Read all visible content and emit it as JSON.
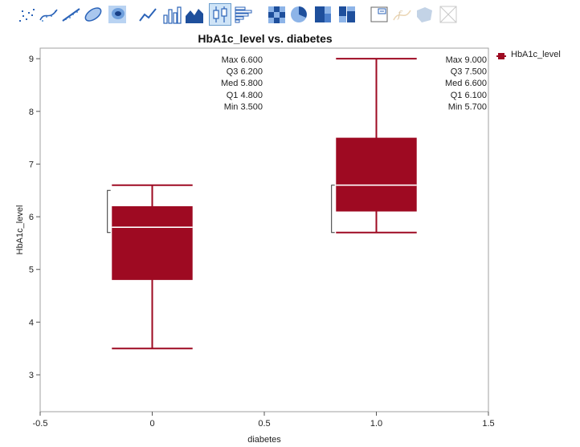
{
  "toolbar": {
    "buttons": [
      {
        "icon": "points-icon",
        "active": false,
        "disabled": false
      },
      {
        "icon": "smoother-icon",
        "active": false,
        "disabled": false
      },
      {
        "icon": "line-of-fit-icon",
        "active": false,
        "disabled": false
      },
      {
        "icon": "ellipse-icon",
        "active": false,
        "disabled": false
      },
      {
        "icon": "contour-icon",
        "active": false,
        "disabled": false
      },
      {
        "icon": "line-icon",
        "active": false,
        "disabled": false
      },
      {
        "icon": "bar-icon",
        "active": false,
        "disabled": false
      },
      {
        "icon": "area-icon",
        "active": false,
        "disabled": false
      },
      {
        "icon": "box-plot-icon",
        "active": true,
        "disabled": false
      },
      {
        "icon": "histogram-icon",
        "active": false,
        "disabled": false
      },
      {
        "icon": "heatmap-icon",
        "active": false,
        "disabled": false
      },
      {
        "icon": "pie-icon",
        "active": false,
        "disabled": false
      },
      {
        "icon": "treemap-icon",
        "active": false,
        "disabled": false
      },
      {
        "icon": "mosaic-icon",
        "active": false,
        "disabled": false
      },
      {
        "icon": "caption-box-icon",
        "active": false,
        "disabled": false
      },
      {
        "icon": "formula-icon",
        "active": false,
        "disabled": true
      },
      {
        "icon": "map-shape-icon",
        "active": false,
        "disabled": true
      },
      {
        "icon": "parallel-icon",
        "active": false,
        "disabled": true
      }
    ]
  },
  "colors": {
    "box": "#9e0a22",
    "median": "#ffffff",
    "frame": "#a0a0a0"
  },
  "chart_data": {
    "type": "box",
    "title": "HbA1c_level vs. diabetes",
    "xlabel": "diabetes",
    "ylabel": "HbA1c_level",
    "xlim": [
      -0.5,
      1.5
    ],
    "ylim": [
      2.3,
      9.2
    ],
    "xticks": [
      -0.5,
      0,
      0.5,
      1.0,
      1.5
    ],
    "xtick_labels": [
      "-0.5",
      "0",
      "0.5",
      "1.0",
      "1.5"
    ],
    "yticks": [
      3,
      4,
      5,
      6,
      7,
      8,
      9
    ],
    "ytick_labels": [
      "3",
      "4",
      "5",
      "6",
      "7",
      "8",
      "9"
    ],
    "grid": false,
    "legend": {
      "position": "right",
      "entries": [
        "HbA1c_level"
      ]
    },
    "boxes": [
      {
        "x": 0,
        "min": 3.5,
        "q1": 4.8,
        "median": 5.8,
        "q3": 6.2,
        "max": 6.6,
        "shortest_half": [
          5.7,
          6.5
        ],
        "labels": [
          {
            "name": "Max",
            "value": "6.600"
          },
          {
            "name": "Q3",
            "value": "6.200"
          },
          {
            "name": "Med",
            "value": "5.800"
          },
          {
            "name": "Q1",
            "value": "4.800"
          },
          {
            "name": "Min",
            "value": "3.500"
          }
        ]
      },
      {
        "x": 1.0,
        "min": 5.7,
        "q1": 6.1,
        "median": 6.6,
        "q3": 7.5,
        "max": 9.0,
        "shortest_half": [
          5.7,
          6.6
        ],
        "labels": [
          {
            "name": "Max",
            "value": "9.000"
          },
          {
            "name": "Q3",
            "value": "7.500"
          },
          {
            "name": "Med",
            "value": "6.600"
          },
          {
            "name": "Q1",
            "value": "6.100"
          },
          {
            "name": "Min",
            "value": "5.700"
          }
        ]
      }
    ]
  }
}
